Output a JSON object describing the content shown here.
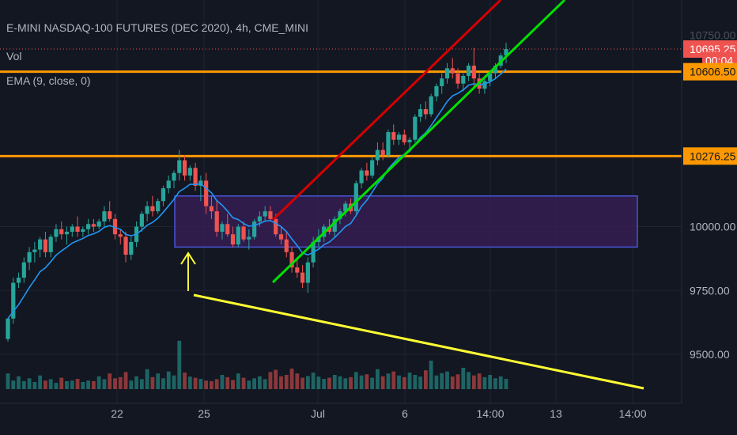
{
  "header": {
    "symbol_line": "E-MINI NASDAQ-100 FUTURES (DEC 2020), 4h, CME_MINI",
    "vol_label": "Vol",
    "ema_label": "EMA (9, close, 0)"
  },
  "colors": {
    "background": "#131722",
    "up": "#26a69a",
    "down": "#ef5350",
    "ema": "#2196f3",
    "orange_level": "#ff9800",
    "red_channel": "#d50000",
    "green_channel": "#00e000",
    "volume_trend": "#ffff33",
    "range_box_fill": "#3a1f5a",
    "range_box_stroke": "#4a55d8",
    "arrow": "#ffff33"
  },
  "chart_data": {
    "type": "candlestick",
    "title": "E-MINI NASDAQ-100 FUTURES (DEC 2020), 4h, CME_MINI",
    "ylim": [
      9330,
      10800
    ],
    "y_ticks": [
      9500,
      9750,
      10000
    ],
    "y_tick_labels": [
      "9500.00",
      "9750.00",
      "10000.00"
    ],
    "x_ticks": [
      "22",
      "25",
      "Jul",
      "6",
      "14:00",
      "13",
      "14:00"
    ],
    "price_labels": [
      {
        "value": 10750,
        "text": "10750.00",
        "style": "plain",
        "partial": true
      },
      {
        "value": 10695.25,
        "text": "10695.25",
        "style": "last"
      },
      {
        "value": 10650,
        "text": "00:04",
        "style": "timer"
      },
      {
        "value": 10606.5,
        "text": "10606.50",
        "style": "level"
      },
      {
        "value": 10276.25,
        "text": "10276.25",
        "style": "level"
      }
    ],
    "horizontal_levels": [
      {
        "name": "upper-resistance",
        "value": 10606.5
      },
      {
        "name": "lower-resistance",
        "value": 10276.25
      }
    ],
    "last_price": 10695.25,
    "candles": [
      [
        9560,
        9640,
        9550,
        9640
      ],
      [
        9640,
        9800,
        9620,
        9780
      ],
      [
        9780,
        9820,
        9760,
        9800
      ],
      [
        9800,
        9880,
        9780,
        9860
      ],
      [
        9860,
        9920,
        9830,
        9900
      ],
      [
        9900,
        9940,
        9860,
        9910
      ],
      [
        9910,
        9960,
        9880,
        9950
      ],
      [
        9950,
        9980,
        9880,
        9900
      ],
      [
        9900,
        9970,
        9880,
        9960
      ],
      [
        9960,
        10010,
        9940,
        9990
      ],
      [
        9990,
        10020,
        9950,
        9970
      ],
      [
        9970,
        10000,
        9930,
        9980
      ],
      [
        9980,
        10010,
        9960,
        10000
      ],
      [
        10000,
        10040,
        9960,
        9980
      ],
      [
        9980,
        10000,
        9960,
        9990
      ],
      [
        9990,
        10030,
        9970,
        10010
      ],
      [
        10010,
        10030,
        9980,
        10000
      ],
      [
        10000,
        10030,
        9990,
        10020
      ],
      [
        10020,
        10080,
        10000,
        10060
      ],
      [
        10060,
        10100,
        10020,
        10030
      ],
      [
        10030,
        10050,
        9950,
        9970
      ],
      [
        9970,
        9990,
        9930,
        9960
      ],
      [
        9960,
        9980,
        9860,
        9890
      ],
      [
        9890,
        9960,
        9870,
        9940
      ],
      [
        9940,
        10020,
        9920,
        10000
      ],
      [
        10000,
        10060,
        9980,
        10050
      ],
      [
        10050,
        10100,
        10020,
        10080
      ],
      [
        10080,
        10120,
        10040,
        10060
      ],
      [
        10060,
        10110,
        10050,
        10100
      ],
      [
        10100,
        10160,
        10080,
        10150
      ],
      [
        10150,
        10200,
        10130,
        10180
      ],
      [
        10180,
        10220,
        10150,
        10210
      ],
      [
        10210,
        10300,
        10180,
        10260
      ],
      [
        10260,
        10280,
        10180,
        10200
      ],
      [
        10200,
        10240,
        10180,
        10230
      ],
      [
        10230,
        10250,
        10140,
        10160
      ],
      [
        10160,
        10200,
        10100,
        10180
      ],
      [
        10180,
        10210,
        10050,
        10080
      ],
      [
        10080,
        10120,
        10030,
        10060
      ],
      [
        10060,
        10100,
        9960,
        9980
      ],
      [
        9980,
        10020,
        9950,
        10010
      ],
      [
        10010,
        10050,
        9960,
        9970
      ],
      [
        9970,
        10000,
        9920,
        9930
      ],
      [
        9930,
        10010,
        9920,
        10000
      ],
      [
        10000,
        10020,
        9940,
        9950
      ],
      [
        9950,
        9990,
        9910,
        9960
      ],
      [
        9960,
        10030,
        9950,
        10020
      ],
      [
        10020,
        10060,
        10000,
        10040
      ],
      [
        10040,
        10080,
        10020,
        10060
      ],
      [
        10060,
        10080,
        10020,
        10030
      ],
      [
        10030,
        10050,
        9960,
        9970
      ],
      [
        9970,
        10000,
        9930,
        9950
      ],
      [
        9950,
        9980,
        9880,
        9900
      ],
      [
        9900,
        9920,
        9820,
        9840
      ],
      [
        9840,
        9880,
        9800,
        9820
      ],
      [
        9820,
        9850,
        9760,
        9780
      ],
      [
        9780,
        9880,
        9740,
        9860
      ],
      [
        9860,
        9960,
        9840,
        9940
      ],
      [
        9940,
        9990,
        9920,
        9960
      ],
      [
        9960,
        10010,
        9940,
        10000
      ],
      [
        10000,
        10030,
        9970,
        9980
      ],
      [
        9980,
        10040,
        9960,
        10030
      ],
      [
        10030,
        10070,
        10010,
        10060
      ],
      [
        10060,
        10100,
        10040,
        10090
      ],
      [
        10090,
        10110,
        10050,
        10060
      ],
      [
        10060,
        10180,
        10050,
        10170
      ],
      [
        10170,
        10230,
        10150,
        10220
      ],
      [
        10220,
        10250,
        10180,
        10200
      ],
      [
        10200,
        10270,
        10190,
        10260
      ],
      [
        10260,
        10330,
        10240,
        10300
      ],
      [
        10300,
        10330,
        10260,
        10280
      ],
      [
        10280,
        10380,
        10270,
        10370
      ],
      [
        10370,
        10400,
        10320,
        10340
      ],
      [
        10340,
        10370,
        10320,
        10360
      ],
      [
        10360,
        10380,
        10320,
        10330
      ],
      [
        10330,
        10350,
        10300,
        10340
      ],
      [
        10340,
        10440,
        10330,
        10430
      ],
      [
        10430,
        10480,
        10410,
        10460
      ],
      [
        10460,
        10490,
        10420,
        10440
      ],
      [
        10440,
        10520,
        10430,
        10510
      ],
      [
        10510,
        10560,
        10490,
        10550
      ],
      [
        10550,
        10600,
        10520,
        10580
      ],
      [
        10580,
        10640,
        10560,
        10620
      ],
      [
        10620,
        10660,
        10580,
        10600
      ],
      [
        10600,
        10620,
        10540,
        10560
      ],
      [
        10560,
        10600,
        10530,
        10590
      ],
      [
        10590,
        10640,
        10570,
        10630
      ],
      [
        10630,
        10700,
        10540,
        10580
      ],
      [
        10580,
        10600,
        10520,
        10540
      ],
      [
        10540,
        10580,
        10520,
        10570
      ],
      [
        10570,
        10610,
        10550,
        10600
      ],
      [
        10600,
        10640,
        10580,
        10630
      ],
      [
        10630,
        10680,
        10620,
        10670
      ],
      [
        10670,
        10720,
        10640,
        10695
      ]
    ],
    "volumes": [
      55,
      30,
      45,
      28,
      38,
      25,
      48,
      30,
      35,
      22,
      40,
      28,
      30,
      36,
      25,
      30,
      28,
      45,
      35,
      55,
      38,
      42,
      60,
      30,
      45,
      35,
      70,
      42,
      55,
      38,
      62,
      48,
      170,
      58,
      44,
      40,
      36,
      30,
      28,
      35,
      50,
      42,
      32,
      55,
      40,
      30,
      38,
      45,
      35,
      60,
      68,
      45,
      50,
      72,
      55,
      40,
      46,
      58,
      44,
      36,
      40,
      50,
      45,
      38,
      42,
      60,
      48,
      52,
      40,
      70,
      45,
      55,
      62,
      48,
      42,
      58,
      50,
      44,
      66,
      100,
      48,
      56,
      62,
      44,
      52,
      75,
      60,
      48,
      55,
      42,
      50,
      38,
      45,
      36
    ]
  },
  "x_tick_positions": [
    148,
    258,
    402,
    512,
    620,
    703,
    800
  ],
  "y_tick_positions": {
    "9500": 448,
    "9750": 345,
    "10000": 270
  }
}
